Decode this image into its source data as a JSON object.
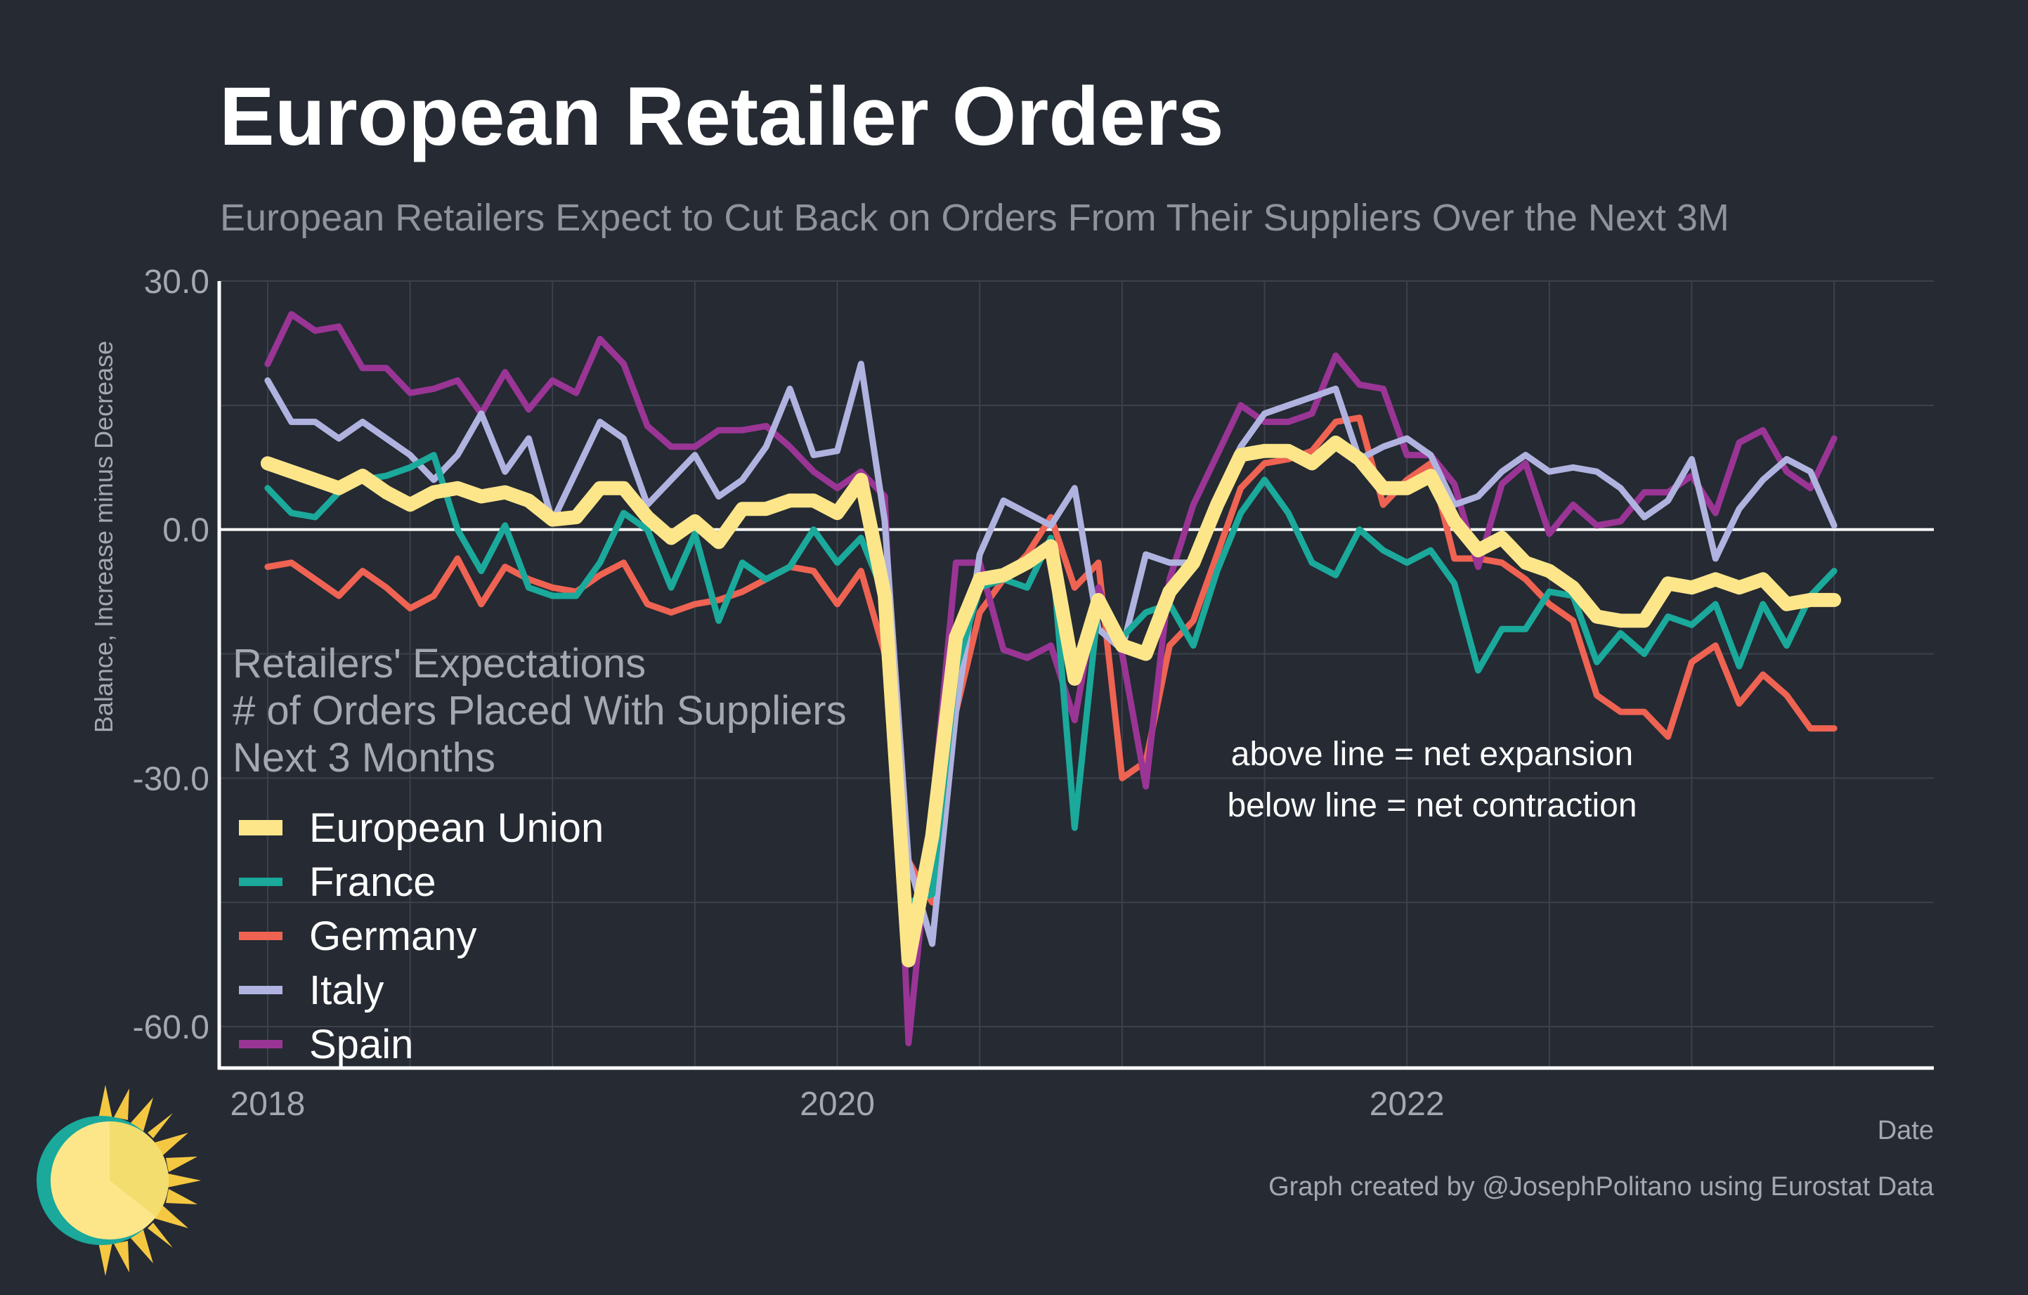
{
  "title": "European Retailer Orders",
  "subtitle": "European Retailers Expect to Cut Back on Orders From Their Suppliers Over the Next 3M",
  "annotation_box": [
    "Retailers' Expectations",
    "# of Orders Placed With Suppliers",
    "Next 3 Months"
  ],
  "annotation_lines": [
    "above line = net expansion",
    "below line = net contraction"
  ],
  "credit": "Graph created by @JosephPolitano using Eurostat Data",
  "logo_icon": "sun-logo-icon",
  "colors": {
    "background": "#252a33",
    "grid": "#3c414b",
    "axis": "#ffffff",
    "eu": "#fde68a",
    "france": "#1aa99b",
    "germany": "#ef6352",
    "italy": "#b0b3df",
    "spain": "#9a3595"
  },
  "chart_data": {
    "type": "line",
    "title": "European Retailer Orders",
    "xlabel": "Date",
    "ylabel": "Balance, Increase minus Decrease",
    "xlim": [
      2017.83,
      2023.85
    ],
    "ylim": [
      -65,
      30
    ],
    "x_ticks": [
      2018,
      2020,
      2022
    ],
    "x_tick_labels": [
      "2018",
      "2020",
      "2022"
    ],
    "y_ticks": [
      30,
      0,
      -30,
      -60
    ],
    "y_tick_labels": [
      "30.0",
      "0.0",
      "-30.0",
      "-60.0"
    ],
    "grid": true,
    "zero_line": true,
    "legend_position": "bottom-left",
    "x_start": 2018.0,
    "x_step_months": 1,
    "series": [
      {
        "name": "European Union",
        "key": "eu",
        "width": 20,
        "values": [
          8,
          7,
          6,
          5,
          6.5,
          4.5,
          3,
          4.5,
          5,
          4,
          4.5,
          3.5,
          1.2,
          1.5,
          5,
          5,
          1.5,
          -1,
          1,
          -1.5,
          2.5,
          2.5,
          3.5,
          3.5,
          2,
          6,
          -8,
          -52,
          -37,
          -13,
          -6,
          -5.5,
          -4,
          -2,
          -18,
          -8.5,
          -14,
          -15,
          -7.5,
          -4,
          3,
          9,
          9.5,
          9.5,
          8,
          10.5,
          8.5,
          5,
          5,
          6.5,
          1,
          -2.5,
          -1,
          -4,
          -5,
          -7,
          -10.5,
          -11,
          -11,
          -6.5,
          -7,
          -6,
          -7,
          -6,
          -9,
          -8.5,
          -8.5
        ]
      },
      {
        "name": "France",
        "key": "france",
        "width": 9,
        "values": [
          5,
          2,
          1.5,
          4.5,
          6,
          6.5,
          7.5,
          9,
          0,
          -5,
          0.5,
          -7,
          -8,
          -8,
          -4,
          2,
          0,
          -7,
          -0.5,
          -11,
          -4,
          -6,
          -4.5,
          0,
          -4,
          -1,
          -8,
          -45,
          -44,
          -17,
          -7,
          -6,
          -7,
          -1,
          -36,
          -9,
          -13,
          -10,
          -9,
          -14,
          -5,
          2,
          6,
          2,
          -4,
          -5.5,
          0,
          -2.5,
          -4,
          -2.5,
          -6.5,
          -17,
          -12,
          -12,
          -7.5,
          -8,
          -16,
          -12.5,
          -15,
          -10.5,
          -11.5,
          -9,
          -16.5,
          -9,
          -14,
          -8,
          -5
        ]
      },
      {
        "name": "Germany",
        "key": "germany",
        "width": 9,
        "values": [
          -4.5,
          -4,
          -6,
          -8,
          -5,
          -7,
          -9.5,
          -8,
          -3.5,
          -9,
          -4.5,
          -6,
          -7,
          -7.5,
          -5.5,
          -4,
          -9,
          -10,
          -9,
          -8.5,
          -7.5,
          -6,
          -4.5,
          -5,
          -9,
          -5,
          -15,
          -40,
          -45,
          -22,
          -10,
          -6,
          -3,
          1.5,
          -7,
          -4,
          -30,
          -28,
          -14,
          -11,
          -3,
          5,
          8,
          8.5,
          9.5,
          13,
          13.5,
          3,
          6,
          8,
          -3.5,
          -3.5,
          -4,
          -6,
          -9,
          -11,
          -20,
          -22,
          -22,
          -25,
          -16,
          -14,
          -21,
          -17.5,
          -20,
          -24,
          -24
        ]
      },
      {
        "name": "Italy",
        "key": "italy",
        "width": 9,
        "values": [
          18,
          13,
          13,
          11,
          13,
          11,
          9,
          6,
          9,
          14,
          7,
          11,
          1,
          7,
          13,
          11,
          3,
          6,
          9,
          4,
          6,
          10,
          17,
          9,
          9.5,
          20,
          1,
          -40,
          -50,
          -22,
          -3,
          3.5,
          2,
          0.5,
          5,
          -12,
          -14.5,
          -3,
          -4,
          -4,
          4,
          10,
          14,
          15,
          16,
          17,
          8.5,
          10,
          11,
          9,
          3,
          4,
          7,
          9,
          7,
          7.5,
          7,
          5,
          1.5,
          3.5,
          8.5,
          -3.5,
          2.5,
          6,
          8.5,
          7,
          0.5
        ]
      },
      {
        "name": "Spain",
        "key": "spain",
        "width": 9,
        "values": [
          20,
          26,
          24,
          24.5,
          19.5,
          19.5,
          16.5,
          17,
          18,
          14,
          19,
          14.5,
          18,
          16.5,
          23,
          20,
          12.5,
          10,
          10,
          12,
          12,
          12.5,
          10,
          7,
          5,
          7,
          4,
          -62,
          -34,
          -4,
          -4,
          -14.5,
          -15.5,
          -14,
          -23,
          -7,
          -15,
          -31,
          -6,
          3,
          9,
          15,
          13,
          13,
          14,
          21,
          17.5,
          17,
          9,
          9,
          5.5,
          -4.5,
          5.5,
          8,
          -0.5,
          3,
          0.5,
          1,
          4.5,
          4.5,
          6.5,
          2,
          10.5,
          12,
          7,
          5,
          11
        ]
      }
    ]
  }
}
